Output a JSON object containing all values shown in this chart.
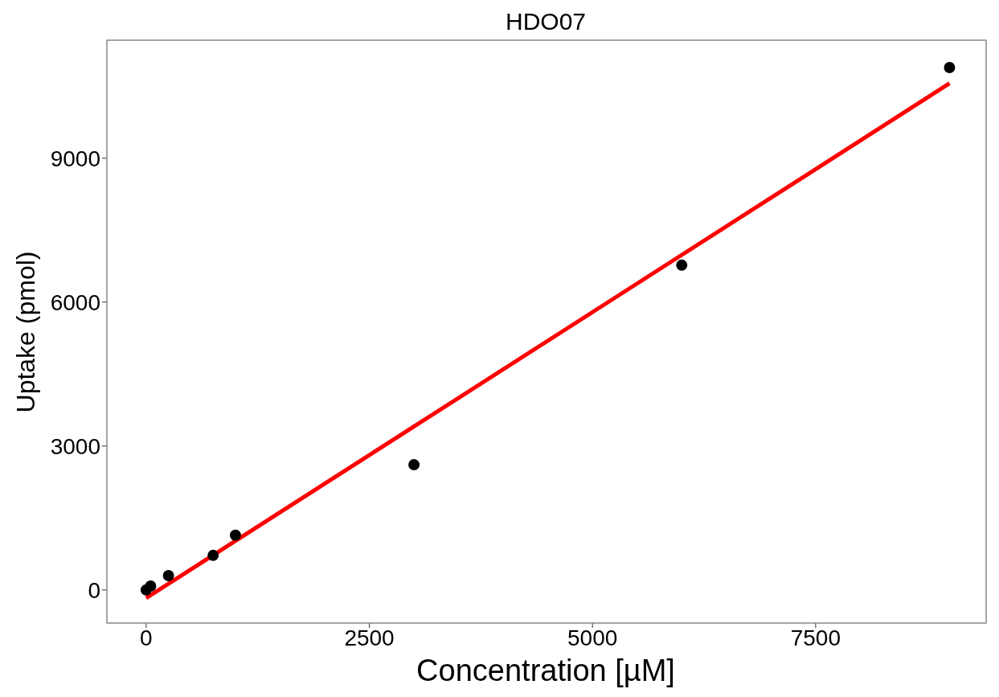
{
  "chart_data": {
    "type": "scatter",
    "title": "HDO07",
    "xlabel": "Concentration [µM]",
    "ylabel": "Uptake (pmol)",
    "xlim": [
      -440,
      9410
    ],
    "xticks": [
      0,
      2500,
      5000,
      7500
    ],
    "ylim": [
      -690,
      11460
    ],
    "yticks": [
      0,
      3000,
      6000,
      9000
    ],
    "marker": "circle",
    "series": [
      {
        "color": "#000000",
        "x": [
          0,
          50,
          250,
          750,
          1000,
          3000,
          6000,
          9000
        ],
        "values": [
          0,
          80,
          300,
          720,
          1140,
          2610,
          6770,
          10890
        ]
      },
      {
        "type": "line",
        "color": "#ff0000",
        "line_style": "solid",
        "marker": "none",
        "x": [
          0,
          9000
        ],
        "values": [
          -170,
          10560
        ]
      }
    ]
  }
}
